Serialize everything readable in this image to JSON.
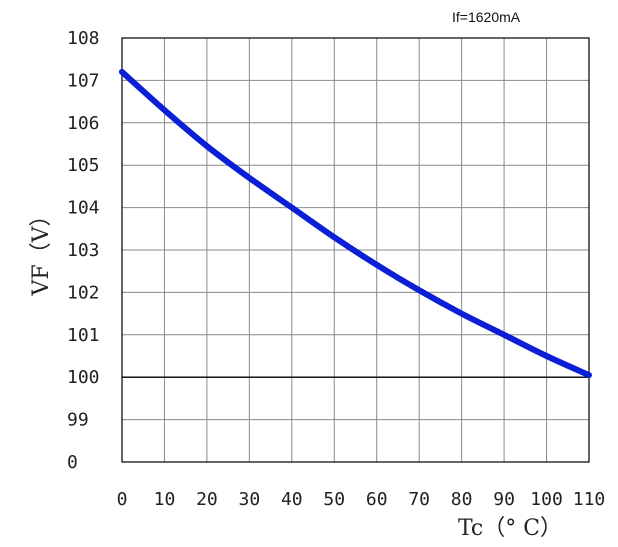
{
  "chart_data": {
    "type": "line",
    "annotation": "If=1620mA",
    "xlabel": "Tc（° C）",
    "ylabel": "VF（V）",
    "xlim": [
      0,
      110
    ],
    "x_ticks": [
      "0",
      "10",
      "20",
      "30",
      "40",
      "50",
      "60",
      "70",
      "80",
      "90",
      "100",
      "110"
    ],
    "y_ticks": [
      "0",
      "99",
      "100",
      "101",
      "102",
      "103",
      "104",
      "105",
      "106",
      "107",
      "108"
    ],
    "grid": true,
    "colors": {
      "series": "#0a1fd6",
      "grid": "#8a8a8a",
      "frame": "#000000"
    },
    "series": [
      {
        "x": [
          0,
          10,
          20,
          30,
          40,
          50,
          60,
          70,
          80,
          90,
          100,
          110
        ],
        "y": [
          107.2,
          106.3,
          105.45,
          104.7,
          104.0,
          103.3,
          102.65,
          102.05,
          101.5,
          101.0,
          100.5,
          100.05
        ]
      }
    ]
  }
}
